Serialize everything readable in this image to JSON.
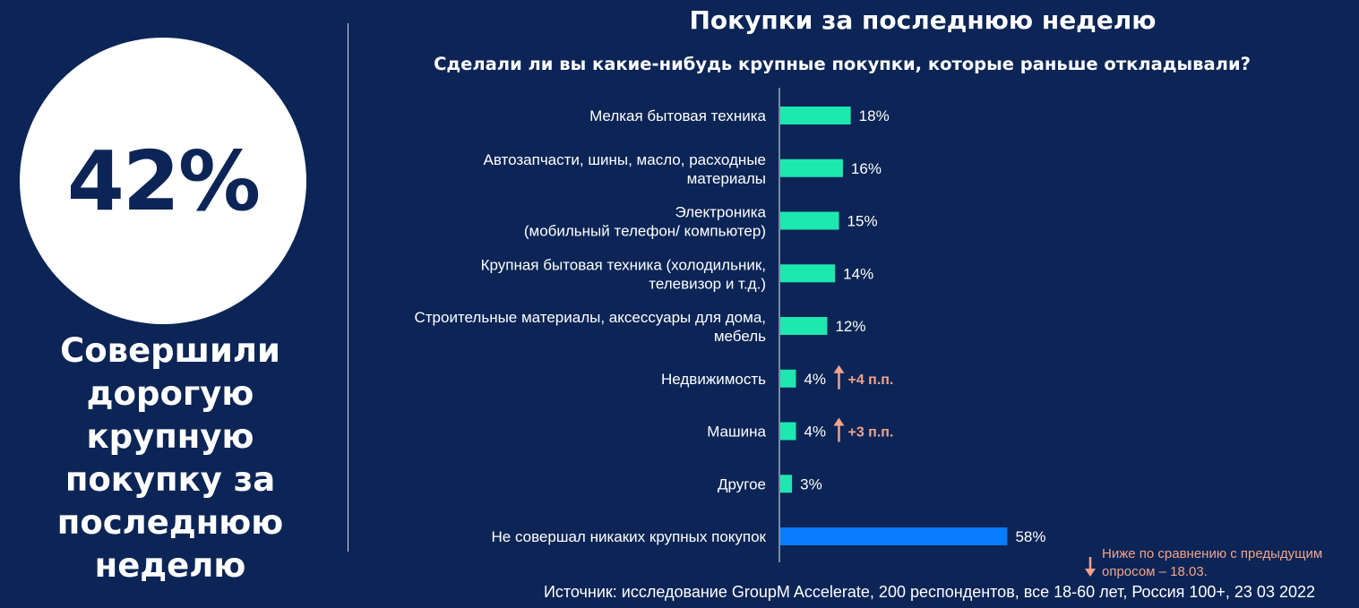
{
  "hero": {
    "value": "42%",
    "caption_lines": [
      "Совершили",
      "дорогую",
      "крупную",
      "покупку за",
      "последнюю",
      "неделю"
    ]
  },
  "title": "Покупки за последнюю неделю",
  "question": "Сделали ли вы какие-нибудь крупные покупки, которые раньше откладывали?",
  "colors": {
    "background": "#0c2556",
    "bar": "#1de8b0",
    "bar_highlight": "#0a7cff",
    "change": "#f2a388"
  },
  "chart_data": {
    "type": "bar",
    "orientation": "horizontal",
    "unit": "%",
    "xlim": [
      0,
      100
    ],
    "categories": [
      [
        "Мелкая бытовая техника"
      ],
      [
        "Автозапчасти, шины, масло, расходные",
        "материалы"
      ],
      [
        "Электроника",
        "(мобильный телефон/ компьютер)"
      ],
      [
        "Крупная бытовая техника (холодильник,",
        "телевизор и т.д.)"
      ],
      [
        "Строительные материалы, аксессуары для дома,",
        "мебель"
      ],
      [
        "Недвижимость"
      ],
      [
        "Машина"
      ],
      [
        "Другое"
      ],
      [
        "Не совершал никаких крупных покупок"
      ]
    ],
    "values": [
      18,
      16,
      15,
      14,
      12,
      4,
      4,
      3,
      58
    ],
    "value_labels": [
      "18%",
      "16%",
      "15%",
      "14%",
      "12%",
      "4%",
      "4%",
      "3%",
      "58%"
    ],
    "highlight": [
      false,
      false,
      false,
      false,
      false,
      false,
      false,
      false,
      true
    ],
    "changes": [
      null,
      null,
      null,
      null,
      null,
      "+4 п.п.",
      "+3 п.п.",
      null,
      null
    ]
  },
  "legend": {
    "line1": "Ниже по сравнению с предыдущим",
    "line2": "опросом – 18.03."
  },
  "source": "Источник: исследование GroupM Accelerate, 200 респондентов, все 18-60 лет, Россия 100+, 23 03 2022"
}
